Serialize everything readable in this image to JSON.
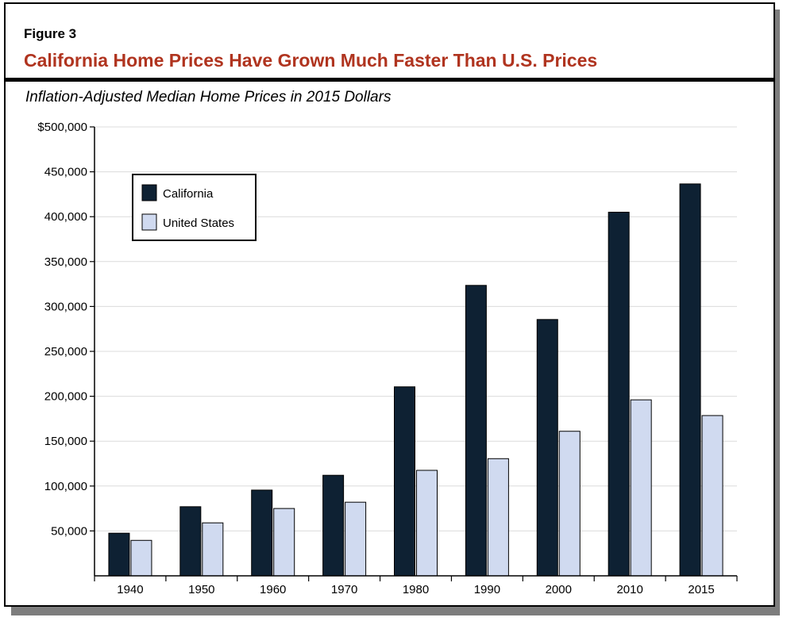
{
  "figure_label": "Figure 3",
  "title": "California Home Prices Have Grown Much Faster Than U.S. Prices",
  "colors": {
    "title": "#b0341f",
    "california": "#0e2133",
    "united_states": "#d0daf0"
  },
  "chart_data": {
    "type": "bar",
    "title": "California Home Prices Have Grown Much Faster Than U.S. Prices",
    "subtitle": "Inflation-Adjusted Median Home Prices in 2015 Dollars",
    "xlabel": "",
    "ylabel": "",
    "categories": [
      "1940",
      "1950",
      "1960",
      "1970",
      "1980",
      "1990",
      "2000",
      "2010",
      "2015"
    ],
    "series": [
      {
        "name": "California",
        "values": [
          47500,
          77000,
          95500,
          112000,
          210500,
          323500,
          285500,
          405000,
          436500
        ]
      },
      {
        "name": "United States",
        "values": [
          39500,
          59000,
          75000,
          82000,
          117500,
          130500,
          161000,
          196000,
          178500
        ]
      }
    ],
    "ylim": [
      0,
      500000
    ],
    "y_ticks": [
      50000,
      100000,
      150000,
      200000,
      250000,
      300000,
      350000,
      400000,
      450000,
      500000
    ],
    "y_tick_labels": [
      "50,000",
      "100,000",
      "150,000",
      "200,000",
      "250,000",
      "300,000",
      "350,000",
      "400,000",
      "450,000",
      "$500,000"
    ],
    "grid": true,
    "legend_position": "top-left"
  }
}
